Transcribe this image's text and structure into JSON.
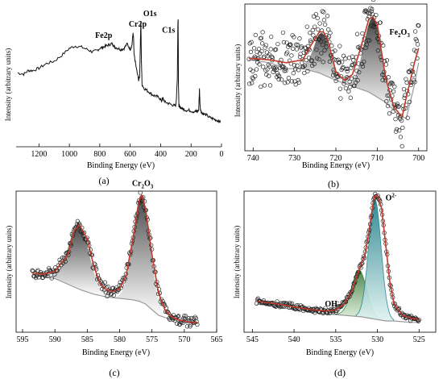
{
  "chart_data": [
    {
      "id": "a",
      "type": "line",
      "panel_label": "(a)",
      "xlabel": "Binding Energy (eV)",
      "ylabel": "Intensity (arbitrary units)",
      "xlim": [
        1350,
        0
      ],
      "xticks": [
        1200,
        1000,
        800,
        600,
        400,
        200,
        0
      ],
      "annotations": [
        {
          "text": "Fe2p",
          "x": 735
        },
        {
          "text": "Cr2p",
          "x": 578
        },
        {
          "text": "O1s",
          "x": 530
        },
        {
          "text": "C1s",
          "x": 285
        }
      ],
      "series": [
        {
          "x": [
            1340,
            1300,
            1270,
            1240,
            1200,
            1150,
            1100,
            1050,
            1000,
            960,
            920,
            880,
            850,
            820,
            800,
            780,
            760,
            740,
            722,
            712,
            700,
            680,
            660,
            640,
            620,
            600,
            588,
            582,
            578,
            575,
            570,
            560,
            545,
            538,
            533,
            530,
            527,
            522,
            510,
            490,
            470,
            450,
            430,
            410,
            395,
            385,
            370,
            350,
            330,
            310,
            300,
            295,
            290,
            287,
            285,
            283,
            280,
            275,
            265,
            250,
            230,
            210,
            190,
            170,
            160,
            150,
            145,
            140,
            130,
            120,
            100,
            80,
            60,
            40,
            20,
            5
          ],
          "y": [
            0.48,
            0.47,
            0.5,
            0.5,
            0.52,
            0.56,
            0.58,
            0.63,
            0.69,
            0.71,
            0.7,
            0.68,
            0.66,
            0.67,
            0.69,
            0.7,
            0.71,
            0.72,
            0.73,
            0.72,
            0.7,
            0.69,
            0.68,
            0.69,
            0.73,
            0.68,
            0.72,
            0.82,
            0.78,
            0.64,
            0.6,
            0.52,
            0.42,
            0.45,
            0.75,
            0.93,
            0.62,
            0.38,
            0.35,
            0.33,
            0.31,
            0.29,
            0.28,
            0.27,
            0.24,
            0.26,
            0.23,
            0.22,
            0.21,
            0.2,
            0.2,
            0.3,
            0.45,
            0.88,
            0.95,
            0.4,
            0.2,
            0.19,
            0.18,
            0.17,
            0.16,
            0.16,
            0.15,
            0.15,
            0.15,
            0.16,
            0.34,
            0.18,
            0.14,
            0.13,
            0.12,
            0.1,
            0.09,
            0.08,
            0.07,
            0.06
          ]
        }
      ]
    },
    {
      "id": "b",
      "type": "scatter",
      "panel_label": "(b)",
      "xlabel": "Binding Energy (eV)",
      "ylabel": "Intensity (arbitrary units)",
      "xlim": [
        742,
        698
      ],
      "xticks": [
        740,
        730,
        720,
        710,
        700
      ],
      "annotations": [
        {
          "text": "Fe2O3",
          "x": 709
        }
      ],
      "fit_envelope": {
        "x": [
          741,
          736,
          732,
          728,
          726,
          724,
          723,
          722,
          720,
          718,
          716,
          714,
          712,
          711,
          710,
          708,
          706,
          704,
          703,
          701,
          700
        ],
        "y": [
          0.63,
          0.62,
          0.6,
          0.62,
          0.72,
          0.81,
          0.81,
          0.76,
          0.54,
          0.48,
          0.52,
          0.7,
          0.9,
          0.91,
          0.86,
          0.5,
          0.3,
          0.23,
          0.36,
          0.6,
          0.7
        ]
      },
      "background": {
        "x": [
          741,
          736,
          732,
          728,
          724,
          720,
          716,
          712,
          708,
          705,
          703,
          701,
          700
        ],
        "y": [
          0.62,
          0.6,
          0.56,
          0.56,
          0.53,
          0.48,
          0.44,
          0.4,
          0.33,
          0.25,
          0.22,
          0.45,
          0.6
        ]
      },
      "peak_components": [
        {
          "center": 723.3,
          "height": 0.28,
          "width": 2.0
        },
        {
          "center": 711.0,
          "height": 0.52,
          "width": 2.2
        }
      ]
    },
    {
      "id": "c",
      "type": "scatter",
      "panel_label": "(c)",
      "xlabel": "Binding Energy (eV)",
      "ylabel": "Intensity (arbitrary units)",
      "xlim": [
        596,
        565
      ],
      "xticks": [
        595,
        590,
        585,
        580,
        575,
        570,
        565
      ],
      "annotations": [
        {
          "text": "Cr2O3",
          "x": 576.6
        }
      ],
      "fit_envelope": {
        "x": [
          593.5,
          592,
          590,
          588,
          587,
          586.2,
          585,
          584,
          583,
          582,
          581,
          580,
          579,
          578,
          577,
          576.6,
          576,
          575,
          574,
          573,
          572,
          571,
          570,
          569,
          568
        ],
        "y": [
          0.42,
          0.41,
          0.43,
          0.55,
          0.72,
          0.76,
          0.66,
          0.47,
          0.34,
          0.3,
          0.29,
          0.31,
          0.4,
          0.65,
          0.93,
          0.97,
          0.88,
          0.55,
          0.28,
          0.16,
          0.11,
          0.09,
          0.08,
          0.07,
          0.07
        ]
      },
      "background": {
        "x": [
          593.5,
          590,
          588,
          586,
          584,
          582,
          580,
          578,
          577,
          576,
          575,
          574,
          572,
          570,
          568
        ],
        "y": [
          0.41,
          0.38,
          0.34,
          0.3,
          0.27,
          0.25,
          0.24,
          0.23,
          0.22,
          0.2,
          0.16,
          0.12,
          0.09,
          0.07,
          0.06
        ]
      },
      "peak_components": [
        {
          "center": 586.3,
          "height": 0.45,
          "width": 1.6
        },
        {
          "center": 576.6,
          "height": 0.76,
          "width": 1.3
        }
      ]
    },
    {
      "id": "d",
      "type": "scatter",
      "panel_label": "(d)",
      "xlabel": "Binding Energy (eV)",
      "ylabel": "Intensity (arbitrary units)",
      "xlim": [
        546,
        523
      ],
      "xticks": [
        545,
        540,
        535,
        530,
        525
      ],
      "annotations": [
        {
          "text": "O2-",
          "x": 529.8
        },
        {
          "text": "OH-",
          "x": 533.6
        }
      ],
      "fit_envelope": {
        "x": [
          544.5,
          542,
          540,
          538,
          536,
          535,
          534,
          533,
          532.3,
          531.5,
          531,
          530.4,
          530,
          529.5,
          529,
          528.5,
          528,
          527,
          526,
          525
        ],
        "y": [
          0.22,
          0.2,
          0.18,
          0.16,
          0.15,
          0.16,
          0.2,
          0.3,
          0.43,
          0.55,
          0.72,
          0.96,
          0.97,
          0.88,
          0.62,
          0.35,
          0.2,
          0.12,
          0.1,
          0.09
        ]
      },
      "background": {
        "x": [
          544.5,
          540,
          536,
          534,
          532,
          531,
          530,
          529,
          528,
          526,
          525
        ],
        "y": [
          0.2,
          0.16,
          0.13,
          0.12,
          0.11,
          0.1,
          0.09,
          0.08,
          0.08,
          0.07,
          0.07
        ]
      },
      "peak_components": [
        {
          "center": 532.2,
          "height": 0.33,
          "width": 0.9
        },
        {
          "center": 530.3,
          "height": 0.85,
          "width": 0.75
        }
      ]
    }
  ]
}
